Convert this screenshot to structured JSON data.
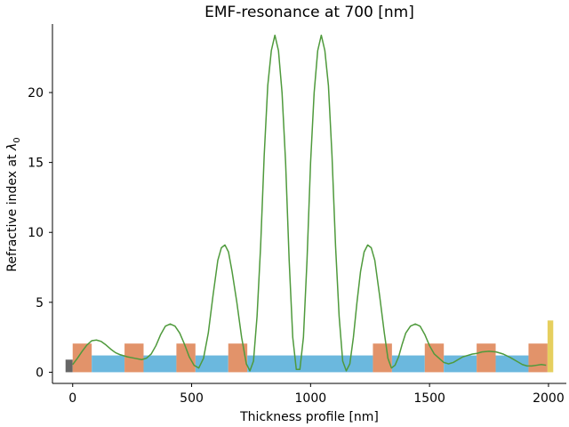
{
  "chart_data": {
    "type": "line",
    "title": "EMF-resonance at 700 [nm]",
    "xlabel": "Thickness profile [nm]",
    "ylabel_text": "Refractive index at ",
    "ylabel_symbol": "λ",
    "ylabel_subscript": "0",
    "xlim": [
      -85,
      2075
    ],
    "ylim": [
      -0.8,
      24.9
    ],
    "xticks": [
      0,
      500,
      1000,
      1500,
      2000
    ],
    "yticks": [
      0,
      5,
      10,
      15,
      20
    ],
    "xtick_labels": [
      "0",
      "500",
      "1000",
      "1500",
      "2000"
    ],
    "ytick_labels": [
      "0",
      "5",
      "10",
      "15",
      "20"
    ],
    "grid": false,
    "layers": [
      {
        "x0": -30,
        "x1": 0,
        "n": 0.9,
        "color": "#666666"
      },
      {
        "x0": 0,
        "x1": 80,
        "n": 2.05,
        "color": "#e2936a"
      },
      {
        "x0": 80,
        "x1": 218,
        "n": 1.2,
        "color": "#6bb8de"
      },
      {
        "x0": 218,
        "x1": 298,
        "n": 2.05,
        "color": "#e2936a"
      },
      {
        "x0": 298,
        "x1": 436,
        "n": 1.2,
        "color": "#6bb8de"
      },
      {
        "x0": 436,
        "x1": 516,
        "n": 2.05,
        "color": "#e2936a"
      },
      {
        "x0": 516,
        "x1": 654,
        "n": 1.2,
        "color": "#6bb8de"
      },
      {
        "x0": 654,
        "x1": 734,
        "n": 2.05,
        "color": "#e2936a"
      },
      {
        "x0": 734,
        "x1": 1262,
        "n": 1.2,
        "color": "#6bb8de"
      },
      {
        "x0": 1262,
        "x1": 1342,
        "n": 2.05,
        "color": "#e2936a"
      },
      {
        "x0": 1342,
        "x1": 1480,
        "n": 1.2,
        "color": "#6bb8de"
      },
      {
        "x0": 1480,
        "x1": 1560,
        "n": 2.05,
        "color": "#e2936a"
      },
      {
        "x0": 1560,
        "x1": 1698,
        "n": 1.2,
        "color": "#6bb8de"
      },
      {
        "x0": 1698,
        "x1": 1778,
        "n": 2.05,
        "color": "#e2936a"
      },
      {
        "x0": 1778,
        "x1": 1916,
        "n": 1.2,
        "color": "#6bb8de"
      },
      {
        "x0": 1916,
        "x1": 1996,
        "n": 2.05,
        "color": "#e2936a"
      },
      {
        "x0": 1996,
        "x1": 2020,
        "n": 3.7,
        "color": "#e6cf5e"
      }
    ],
    "series": [
      {
        "color": "#4f9a3c",
        "x": [
          0,
          20,
          40,
          60,
          80,
          100,
          120,
          140,
          160,
          180,
          200,
          230,
          260,
          290,
          310,
          330,
          350,
          370,
          390,
          410,
          430,
          450,
          470,
          490,
          510,
          530,
          550,
          570,
          590,
          610,
          625,
          640,
          655,
          670,
          690,
          710,
          730,
          745,
          760,
          775,
          790,
          805,
          820,
          835,
          850,
          865,
          880,
          895,
          910,
          925,
          940,
          955,
          970,
          985,
          1000,
          1015,
          1030,
          1045,
          1060,
          1075,
          1090,
          1105,
          1120,
          1135,
          1150,
          1165,
          1180,
          1195,
          1210,
          1225,
          1240,
          1255,
          1270,
          1290,
          1310,
          1325,
          1340,
          1355,
          1370,
          1385,
          1400,
          1420,
          1440,
          1460,
          1480,
          1500,
          1520,
          1540,
          1560,
          1580,
          1600,
          1620,
          1640,
          1660,
          1680,
          1700,
          1720,
          1750,
          1780,
          1810,
          1840,
          1870,
          1890,
          1910,
          1930,
          1950,
          1970,
          1990
        ],
        "y": [
          0.55,
          1.0,
          1.5,
          1.95,
          2.25,
          2.3,
          2.2,
          1.95,
          1.65,
          1.4,
          1.25,
          1.1,
          1.0,
          0.9,
          1.0,
          1.3,
          1.9,
          2.7,
          3.3,
          3.45,
          3.3,
          2.8,
          2.0,
          1.1,
          0.5,
          0.3,
          1.0,
          2.8,
          5.5,
          8.0,
          8.9,
          9.1,
          8.6,
          7.2,
          5.0,
          2.5,
          0.6,
          0.1,
          0.8,
          4.0,
          9.0,
          15.5,
          20.5,
          23.0,
          24.1,
          23.0,
          20.0,
          15.0,
          8.0,
          2.5,
          0.2,
          0.2,
          2.5,
          8.0,
          15.0,
          20.0,
          23.0,
          24.1,
          23.0,
          20.5,
          15.5,
          9.0,
          4.0,
          0.8,
          0.1,
          0.6,
          2.5,
          5.0,
          7.2,
          8.6,
          9.1,
          8.9,
          8.0,
          5.5,
          2.8,
          1.0,
          0.3,
          0.5,
          1.1,
          2.0,
          2.8,
          3.3,
          3.45,
          3.3,
          2.7,
          1.9,
          1.3,
          1.0,
          0.7,
          0.6,
          0.7,
          0.9,
          1.1,
          1.2,
          1.3,
          1.35,
          1.45,
          1.5,
          1.45,
          1.3,
          1.05,
          0.75,
          0.55,
          0.45,
          0.45,
          0.5,
          0.55,
          0.5
        ]
      }
    ]
  }
}
